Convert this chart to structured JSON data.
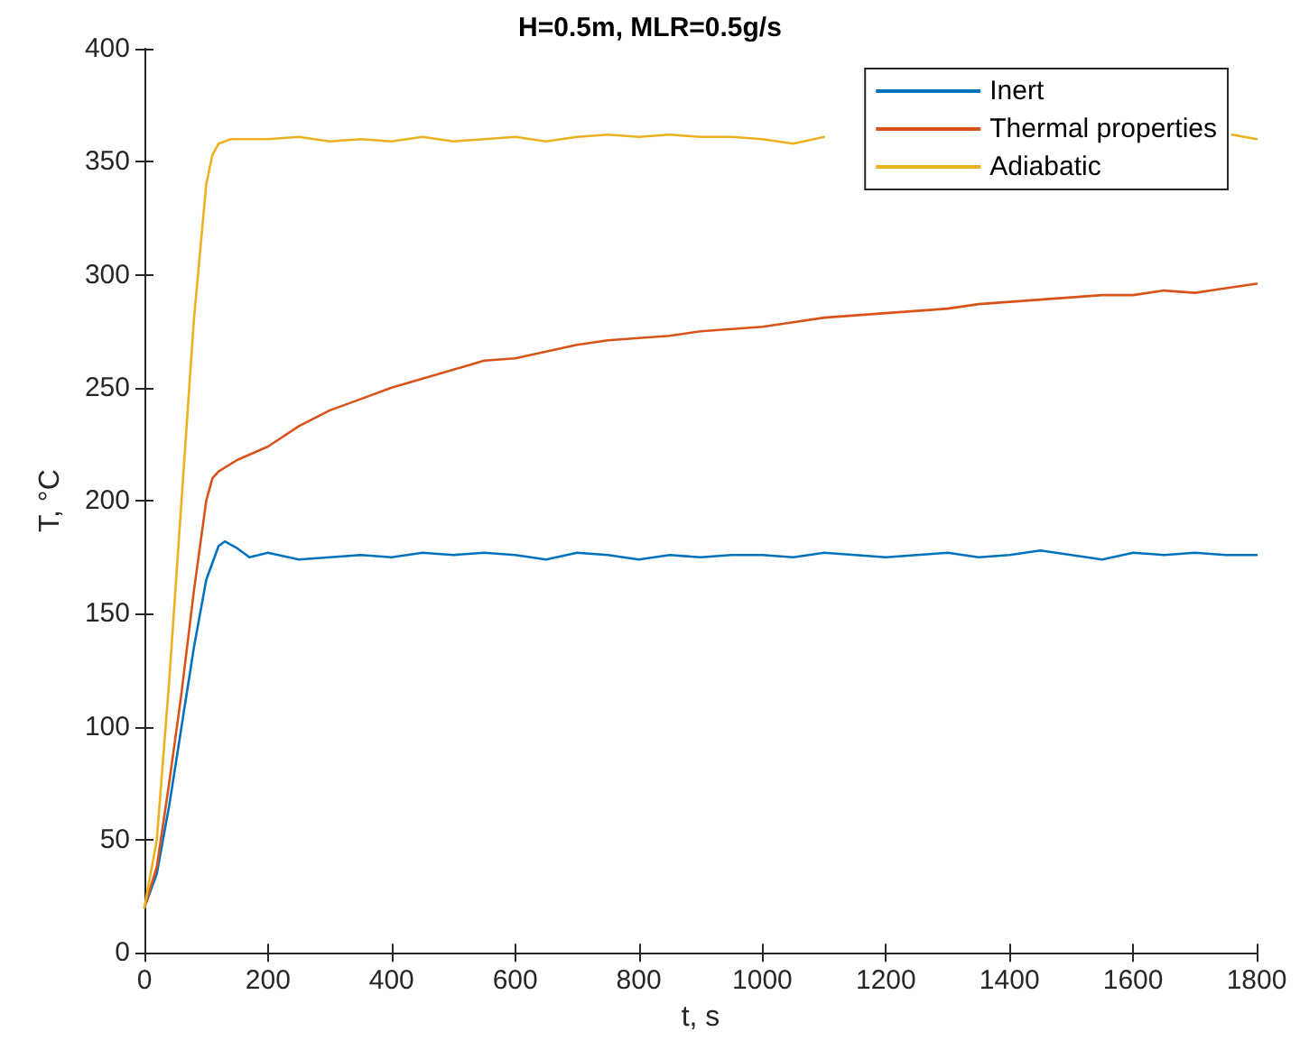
{
  "chart_data": {
    "type": "line",
    "title": "H=0.5m, MLR=0.5g/s",
    "xlabel": "t, s",
    "ylabel": "T, °C",
    "xlim": [
      0,
      1800
    ],
    "xticks": [
      0,
      200,
      400,
      600,
      800,
      1000,
      1200,
      1400,
      1600,
      1800
    ],
    "ylim": [
      0,
      400
    ],
    "yticks": [
      0,
      50,
      100,
      150,
      200,
      250,
      300,
      350,
      400
    ],
    "grid": false,
    "legend": "top right",
    "marker": "none",
    "line_style": "solid",
    "series": [
      {
        "name": "Inert",
        "color": "#0072bd",
        "x": [
          0,
          20,
          40,
          60,
          80,
          100,
          120,
          130,
          150,
          170,
          200,
          250,
          300,
          350,
          400,
          450,
          500,
          550,
          600,
          650,
          700,
          750,
          800,
          850,
          900,
          950,
          1000,
          1050,
          1100,
          1150,
          1200,
          1250,
          1300,
          1350,
          1400,
          1450,
          1500,
          1550,
          1600,
          1650,
          1700,
          1750,
          1800
        ],
        "values": [
          20,
          35,
          65,
          100,
          135,
          165,
          180,
          182,
          179,
          175,
          177,
          174,
          175,
          176,
          175,
          177,
          176,
          177,
          176,
          174,
          177,
          176,
          174,
          176,
          175,
          176,
          176,
          175,
          177,
          176,
          175,
          176,
          177,
          175,
          176,
          178,
          176,
          174,
          177,
          176,
          177,
          176,
          176
        ]
      },
      {
        "name": "Thermal properties",
        "color": "#d95319",
        "x": [
          0,
          20,
          40,
          60,
          80,
          100,
          110,
          120,
          150,
          200,
          250,
          300,
          350,
          400,
          450,
          500,
          550,
          600,
          650,
          700,
          750,
          800,
          850,
          900,
          950,
          1000,
          1050,
          1100,
          1150,
          1200,
          1250,
          1300,
          1350,
          1400,
          1450,
          1500,
          1550,
          1600,
          1650,
          1700,
          1750,
          1800
        ],
        "values": [
          20,
          38,
          75,
          115,
          160,
          200,
          210,
          213,
          218,
          224,
          233,
          240,
          245,
          250,
          254,
          258,
          262,
          263,
          266,
          269,
          271,
          272,
          273,
          275,
          276,
          277,
          279,
          281,
          282,
          283,
          284,
          285,
          287,
          288,
          289,
          290,
          291,
          291,
          293,
          292,
          294,
          296
        ]
      },
      {
        "name": "Adiabatic",
        "color": "#edb120",
        "x": [
          0,
          20,
          40,
          60,
          80,
          100,
          110,
          120,
          140,
          200,
          250,
          300,
          350,
          400,
          450,
          500,
          550,
          600,
          650,
          700,
          750,
          800,
          850,
          900,
          950,
          1000,
          1050,
          1100,
          1150,
          1200,
          1250,
          1300,
          1350,
          1400,
          1450,
          1500,
          1550,
          1600,
          1650,
          1700,
          1760,
          1800
        ],
        "values": [
          20,
          50,
          120,
          200,
          280,
          340,
          353,
          358,
          360,
          360,
          361,
          359,
          360,
          359,
          361,
          359,
          360,
          361,
          359,
          361,
          362,
          361,
          362,
          361,
          361,
          360,
          358,
          361,
          null,
          null,
          null,
          null,
          null,
          null,
          null,
          null,
          null,
          null,
          null,
          null,
          362,
          360
        ]
      }
    ]
  }
}
